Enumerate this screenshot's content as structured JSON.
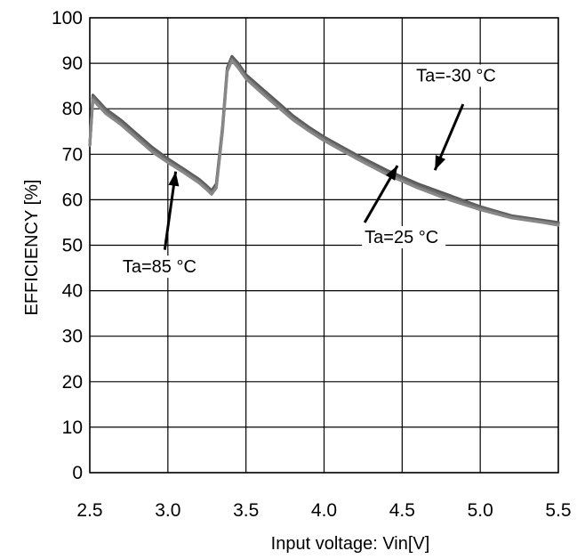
{
  "chart_data": {
    "type": "line",
    "xlabel": "Input voltage: Vin[V]",
    "ylabel": "EFFICIENCY [%]",
    "xlim": [
      2.5,
      5.5
    ],
    "ylim": [
      0,
      100
    ],
    "x_ticks": [
      "2.5",
      "3.0",
      "3.5",
      "4.0",
      "4.5",
      "5.0",
      "5.5"
    ],
    "y_ticks": [
      "0",
      "10",
      "20",
      "30",
      "40",
      "50",
      "60",
      "70",
      "80",
      "90",
      "100"
    ],
    "grid": true,
    "series": [
      {
        "name": "Ta=-30 °C",
        "color": "#5a5a5a",
        "x": [
          2.5,
          2.52,
          2.6,
          2.7,
          2.8,
          2.9,
          3.0,
          3.1,
          3.2,
          3.25,
          3.28,
          3.31,
          3.35,
          3.38,
          3.41,
          3.45,
          3.5,
          3.6,
          3.7,
          3.8,
          3.9,
          4.0,
          4.2,
          4.4,
          4.6,
          4.8,
          5.0,
          5.2,
          5.4,
          5.5
        ],
        "y": [
          72,
          83,
          80,
          77.5,
          74.5,
          71.5,
          69,
          66.8,
          64.5,
          63,
          62,
          63.5,
          76,
          89,
          91.5,
          90,
          87.5,
          84.5,
          81.5,
          78.5,
          76,
          73.8,
          70,
          66.5,
          63.5,
          61,
          58.5,
          56.5,
          55.5,
          55
        ]
      },
      {
        "name": "Ta=25 °C",
        "color": "#6e6e6e",
        "x": [
          2.5,
          2.52,
          2.6,
          2.7,
          2.8,
          2.9,
          3.0,
          3.1,
          3.2,
          3.25,
          3.28,
          3.31,
          3.35,
          3.38,
          3.41,
          3.45,
          3.5,
          3.6,
          3.7,
          3.8,
          3.9,
          4.0,
          4.2,
          4.4,
          4.6,
          4.8,
          5.0,
          5.2,
          5.4,
          5.5
        ],
        "y": [
          72,
          82.5,
          79.6,
          77,
          74,
          71,
          68.6,
          66.4,
          64.1,
          62.6,
          61.6,
          63,
          75.5,
          88.6,
          91,
          89.5,
          87,
          84,
          81,
          78,
          75.6,
          73.4,
          69.6,
          66,
          63,
          60.5,
          58.2,
          56.3,
          55.2,
          54.7
        ]
      },
      {
        "name": "Ta=85 °C",
        "color": "#888888",
        "x": [
          2.5,
          2.52,
          2.6,
          2.7,
          2.8,
          2.9,
          3.0,
          3.1,
          3.2,
          3.25,
          3.28,
          3.31,
          3.35,
          3.38,
          3.41,
          3.45,
          3.5,
          3.6,
          3.7,
          3.8,
          3.9,
          4.0,
          4.2,
          4.4,
          4.6,
          4.8,
          5.0,
          5.2,
          5.4,
          5.5
        ],
        "y": [
          72,
          82,
          79,
          76.5,
          73.5,
          70.5,
          68.2,
          66,
          63.7,
          62.2,
          61.2,
          62.6,
          75,
          88.2,
          90.6,
          89,
          86.6,
          83.5,
          80.5,
          77.6,
          75.2,
          73,
          69.2,
          65.6,
          62.6,
          60,
          57.8,
          56,
          55,
          54.4
        ]
      }
    ],
    "annotations": [
      {
        "text": "Ta=-30 °C",
        "tx": 4.59,
        "ty": 86,
        "ax_from": [
          4.89,
          81
        ],
        "ax_to": [
          4.71,
          66.5
        ]
      },
      {
        "text": "Ta=25 °C",
        "tx": 4.26,
        "ty": 50.5,
        "ax_from": [
          4.26,
          55
        ],
        "ax_to": [
          4.47,
          67.5
        ]
      },
      {
        "text": "Ta=85 °C",
        "tx": 2.71,
        "ty": 44,
        "ax_from": [
          2.98,
          49
        ],
        "ax_to": [
          3.05,
          66.2
        ]
      }
    ]
  }
}
